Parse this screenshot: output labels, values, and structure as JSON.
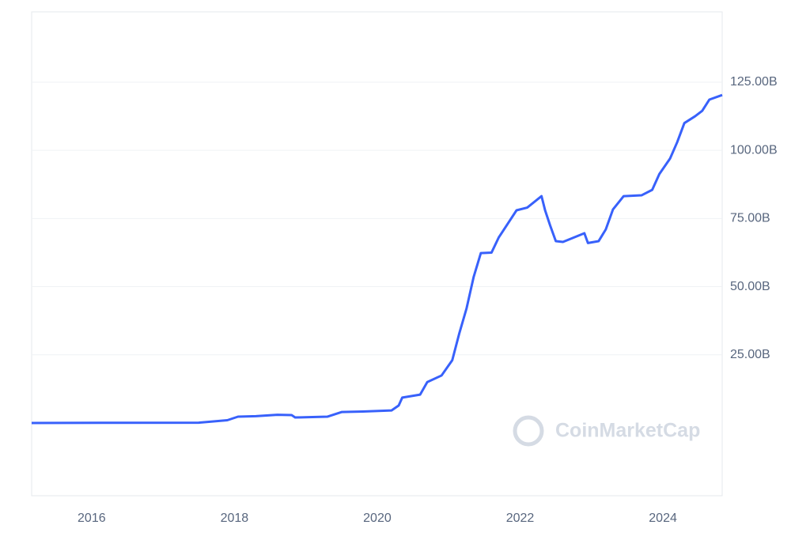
{
  "chart_data": {
    "type": "line",
    "watermark": "CoinMarketCap",
    "x": [
      2015.16,
      2017.5,
      2017.9,
      2018.05,
      2018.3,
      2018.6,
      2018.8,
      2018.85,
      2019.3,
      2019.5,
      2019.8,
      2020.2,
      2020.3,
      2020.35,
      2020.6,
      2020.7,
      2020.9,
      2021.05,
      2021.15,
      2021.25,
      2021.35,
      2021.45,
      2021.6,
      2021.7,
      2021.85,
      2021.95,
      2022.1,
      2022.3,
      2022.35,
      2022.42,
      2022.5,
      2022.6,
      2022.75,
      2022.9,
      2022.95,
      2023.1,
      2023.2,
      2023.3,
      2023.45,
      2023.7,
      2023.85,
      2023.95,
      2024.1,
      2024.2,
      2024.3,
      2024.45,
      2024.55,
      2024.65,
      2024.83
    ],
    "series": [
      {
        "color": "#3861fb",
        "values": [
          0,
          0.1,
          1.0,
          2.3,
          2.5,
          3.0,
          2.9,
          2.0,
          2.3,
          4.0,
          4.2,
          4.6,
          6.4,
          9.3,
          10.4,
          15,
          17.4,
          23,
          33,
          42,
          53.6,
          62.3,
          62.5,
          68,
          74,
          78,
          79,
          83.2,
          78,
          72.5,
          66.7,
          66.4,
          68,
          69.6,
          66,
          66.7,
          71,
          78.3,
          83.2,
          83.5,
          85.5,
          91.3,
          97,
          103,
          110,
          112.5,
          114.5,
          118.6,
          120.3
        ]
      }
    ],
    "xlim": [
      2015.16,
      2024.83
    ],
    "xticks": [
      2016,
      2018,
      2020,
      2022,
      2024
    ],
    "ylim": [
      -26.7,
      150.8
    ],
    "yticks": [
      {
        "value": 25,
        "label": "25.00B"
      },
      {
        "value": 50,
        "label": "50.00B"
      },
      {
        "value": 75,
        "label": "75.00B"
      },
      {
        "value": 100,
        "label": "100.00B"
      },
      {
        "value": 125,
        "label": "125.00B"
      }
    ],
    "grid": true
  }
}
